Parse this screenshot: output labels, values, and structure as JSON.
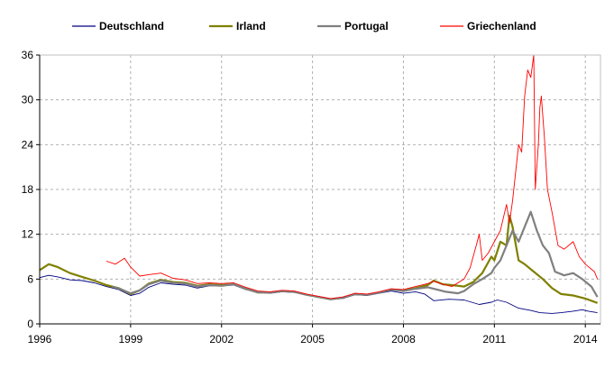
{
  "chart_data": {
    "type": "line",
    "title": "",
    "xlabel": "",
    "ylabel": "",
    "xlim": [
      1996.0,
      2014.5
    ],
    "ylim": [
      0,
      36
    ],
    "x_ticks": [
      "1996",
      "1999",
      "2002",
      "2005",
      "2008",
      "2011",
      "2014"
    ],
    "y_ticks": [
      "0",
      "6",
      "12",
      "18",
      "24",
      "30",
      "36"
    ],
    "grid": true,
    "legend_position": "top",
    "series": [
      {
        "name": "Deutschland",
        "color": "#000080",
        "width": 0.9,
        "points": [
          [
            1996.0,
            6.2
          ],
          [
            1996.3,
            6.5
          ],
          [
            1996.6,
            6.3
          ],
          [
            1997.0,
            5.9
          ],
          [
            1997.4,
            5.8
          ],
          [
            1997.8,
            5.5
          ],
          [
            1998.2,
            5.0
          ],
          [
            1998.6,
            4.6
          ],
          [
            1998.9,
            4.0
          ],
          [
            1999.0,
            3.8
          ],
          [
            1999.3,
            4.1
          ],
          [
            1999.6,
            4.9
          ],
          [
            2000.0,
            5.5
          ],
          [
            2000.4,
            5.3
          ],
          [
            2000.8,
            5.2
          ],
          [
            2001.2,
            4.8
          ],
          [
            2001.6,
            5.1
          ],
          [
            2002.0,
            5.1
          ],
          [
            2002.4,
            5.2
          ],
          [
            2002.8,
            4.6
          ],
          [
            2003.2,
            4.2
          ],
          [
            2003.6,
            4.1
          ],
          [
            2004.0,
            4.3
          ],
          [
            2004.4,
            4.2
          ],
          [
            2004.8,
            3.9
          ],
          [
            2005.2,
            3.6
          ],
          [
            2005.6,
            3.3
          ],
          [
            2006.0,
            3.4
          ],
          [
            2006.4,
            3.9
          ],
          [
            2006.8,
            3.8
          ],
          [
            2007.2,
            4.1
          ],
          [
            2007.6,
            4.4
          ],
          [
            2008.0,
            4.1
          ],
          [
            2008.4,
            4.3
          ],
          [
            2008.7,
            4.0
          ],
          [
            2009.0,
            3.1
          ],
          [
            2009.5,
            3.3
          ],
          [
            2010.0,
            3.2
          ],
          [
            2010.5,
            2.6
          ],
          [
            2010.9,
            2.9
          ],
          [
            2011.1,
            3.2
          ],
          [
            2011.4,
            2.9
          ],
          [
            2011.8,
            2.1
          ],
          [
            2012.2,
            1.8
          ],
          [
            2012.5,
            1.5
          ],
          [
            2012.9,
            1.4
          ],
          [
            2013.2,
            1.5
          ],
          [
            2013.6,
            1.7
          ],
          [
            2013.9,
            1.9
          ],
          [
            2014.1,
            1.7
          ],
          [
            2014.4,
            1.5
          ]
        ]
      },
      {
        "name": "Irland",
        "color": "#808000",
        "width": 2.2,
        "points": [
          [
            1996.0,
            7.2
          ],
          [
            1996.3,
            8.0
          ],
          [
            1996.6,
            7.6
          ],
          [
            1997.0,
            6.8
          ],
          [
            1997.4,
            6.3
          ],
          [
            1997.8,
            5.8
          ],
          [
            1998.2,
            5.2
          ],
          [
            1998.6,
            4.8
          ],
          [
            1998.9,
            4.2
          ],
          [
            1999.0,
            4.0
          ],
          [
            1999.3,
            4.5
          ],
          [
            1999.6,
            5.4
          ],
          [
            2000.0,
            5.9
          ],
          [
            2000.4,
            5.6
          ],
          [
            2000.8,
            5.5
          ],
          [
            2001.2,
            5.1
          ],
          [
            2001.6,
            5.3
          ],
          [
            2002.0,
            5.2
          ],
          [
            2002.4,
            5.3
          ],
          [
            2002.8,
            4.7
          ],
          [
            2003.2,
            4.2
          ],
          [
            2003.6,
            4.2
          ],
          [
            2004.0,
            4.4
          ],
          [
            2004.4,
            4.3
          ],
          [
            2004.8,
            3.9
          ],
          [
            2005.2,
            3.6
          ],
          [
            2005.6,
            3.3
          ],
          [
            2006.0,
            3.5
          ],
          [
            2006.4,
            4.0
          ],
          [
            2006.8,
            3.9
          ],
          [
            2007.2,
            4.2
          ],
          [
            2007.6,
            4.6
          ],
          [
            2008.0,
            4.5
          ],
          [
            2008.4,
            4.8
          ],
          [
            2008.8,
            5.2
          ],
          [
            2009.0,
            5.8
          ],
          [
            2009.3,
            5.3
          ],
          [
            2009.6,
            5.2
          ],
          [
            2010.0,
            5.0
          ],
          [
            2010.3,
            5.6
          ],
          [
            2010.6,
            6.8
          ],
          [
            2010.9,
            9.0
          ],
          [
            2011.0,
            8.5
          ],
          [
            2011.2,
            11.0
          ],
          [
            2011.4,
            10.5
          ],
          [
            2011.5,
            14.5
          ],
          [
            2011.6,
            13.0
          ],
          [
            2011.8,
            8.5
          ],
          [
            2012.0,
            8.0
          ],
          [
            2012.3,
            7.0
          ],
          [
            2012.6,
            6.0
          ],
          [
            2012.9,
            4.8
          ],
          [
            2013.2,
            4.0
          ],
          [
            2013.6,
            3.8
          ],
          [
            2014.0,
            3.4
          ],
          [
            2014.4,
            2.8
          ]
        ]
      },
      {
        "name": "Portugal",
        "color": "#808080",
        "width": 2.2,
        "points": [
          [
            1998.4,
            5.0
          ],
          [
            1998.7,
            4.6
          ],
          [
            1999.0,
            4.1
          ],
          [
            1999.3,
            4.5
          ],
          [
            1999.6,
            5.3
          ],
          [
            2000.0,
            5.8
          ],
          [
            2000.4,
            5.5
          ],
          [
            2000.8,
            5.4
          ],
          [
            2001.2,
            5.0
          ],
          [
            2001.6,
            5.2
          ],
          [
            2002.0,
            5.1
          ],
          [
            2002.4,
            5.3
          ],
          [
            2002.8,
            4.7
          ],
          [
            2003.2,
            4.2
          ],
          [
            2003.6,
            4.2
          ],
          [
            2004.0,
            4.4
          ],
          [
            2004.4,
            4.3
          ],
          [
            2004.8,
            3.9
          ],
          [
            2005.2,
            3.6
          ],
          [
            2005.6,
            3.3
          ],
          [
            2006.0,
            3.5
          ],
          [
            2006.4,
            4.0
          ],
          [
            2006.8,
            3.9
          ],
          [
            2007.2,
            4.2
          ],
          [
            2007.6,
            4.6
          ],
          [
            2008.0,
            4.4
          ],
          [
            2008.4,
            4.7
          ],
          [
            2008.8,
            4.9
          ],
          [
            2009.0,
            4.7
          ],
          [
            2009.4,
            4.3
          ],
          [
            2009.8,
            4.1
          ],
          [
            2010.0,
            4.4
          ],
          [
            2010.3,
            5.3
          ],
          [
            2010.6,
            6.0
          ],
          [
            2010.9,
            6.8
          ],
          [
            2011.0,
            7.5
          ],
          [
            2011.2,
            8.5
          ],
          [
            2011.4,
            10.5
          ],
          [
            2011.6,
            12.5
          ],
          [
            2011.8,
            11.0
          ],
          [
            2012.0,
            13.0
          ],
          [
            2012.2,
            15.0
          ],
          [
            2012.4,
            12.5
          ],
          [
            2012.6,
            10.5
          ],
          [
            2012.8,
            9.5
          ],
          [
            2013.0,
            7.0
          ],
          [
            2013.3,
            6.5
          ],
          [
            2013.6,
            6.8
          ],
          [
            2013.9,
            6.0
          ],
          [
            2014.2,
            5.0
          ],
          [
            2014.4,
            3.6
          ]
        ]
      },
      {
        "name": "Griechenland",
        "color": "#ff0000",
        "width": 0.9,
        "points": [
          [
            1998.2,
            8.4
          ],
          [
            1998.5,
            8.0
          ],
          [
            1998.8,
            8.8
          ],
          [
            1999.0,
            7.6
          ],
          [
            1999.3,
            6.4
          ],
          [
            1999.6,
            6.6
          ],
          [
            2000.0,
            6.8
          ],
          [
            2000.4,
            6.1
          ],
          [
            2000.8,
            5.9
          ],
          [
            2001.2,
            5.4
          ],
          [
            2001.6,
            5.5
          ],
          [
            2002.0,
            5.4
          ],
          [
            2002.4,
            5.5
          ],
          [
            2002.8,
            4.9
          ],
          [
            2003.2,
            4.4
          ],
          [
            2003.6,
            4.3
          ],
          [
            2004.0,
            4.5
          ],
          [
            2004.4,
            4.4
          ],
          [
            2004.8,
            4.0
          ],
          [
            2005.2,
            3.7
          ],
          [
            2005.6,
            3.4
          ],
          [
            2006.0,
            3.6
          ],
          [
            2006.4,
            4.1
          ],
          [
            2006.8,
            4.0
          ],
          [
            2007.2,
            4.3
          ],
          [
            2007.6,
            4.7
          ],
          [
            2008.0,
            4.6
          ],
          [
            2008.4,
            5.0
          ],
          [
            2008.8,
            5.4
          ],
          [
            2009.0,
            5.7
          ],
          [
            2009.3,
            5.3
          ],
          [
            2009.6,
            5.0
          ],
          [
            2010.0,
            6.0
          ],
          [
            2010.2,
            7.5
          ],
          [
            2010.4,
            10.5
          ],
          [
            2010.5,
            12.0
          ],
          [
            2010.6,
            8.5
          ],
          [
            2010.8,
            9.5
          ],
          [
            2011.0,
            11.0
          ],
          [
            2011.2,
            12.5
          ],
          [
            2011.4,
            16.0
          ],
          [
            2011.5,
            13.5
          ],
          [
            2011.6,
            16.5
          ],
          [
            2011.8,
            24.0
          ],
          [
            2011.9,
            23.0
          ],
          [
            2012.0,
            30.5
          ],
          [
            2012.1,
            34.0
          ],
          [
            2012.2,
            33.0
          ],
          [
            2012.3,
            36.0
          ],
          [
            2012.35,
            18.0
          ],
          [
            2012.45,
            24.0
          ],
          [
            2012.5,
            29.0
          ],
          [
            2012.55,
            30.5
          ],
          [
            2012.65,
            25.0
          ],
          [
            2012.75,
            18.0
          ],
          [
            2012.9,
            15.0
          ],
          [
            2013.1,
            10.5
          ],
          [
            2013.3,
            10.0
          ],
          [
            2013.6,
            11.0
          ],
          [
            2013.8,
            9.0
          ],
          [
            2014.0,
            8.0
          ],
          [
            2014.3,
            7.0
          ],
          [
            2014.4,
            6.0
          ]
        ]
      }
    ]
  }
}
